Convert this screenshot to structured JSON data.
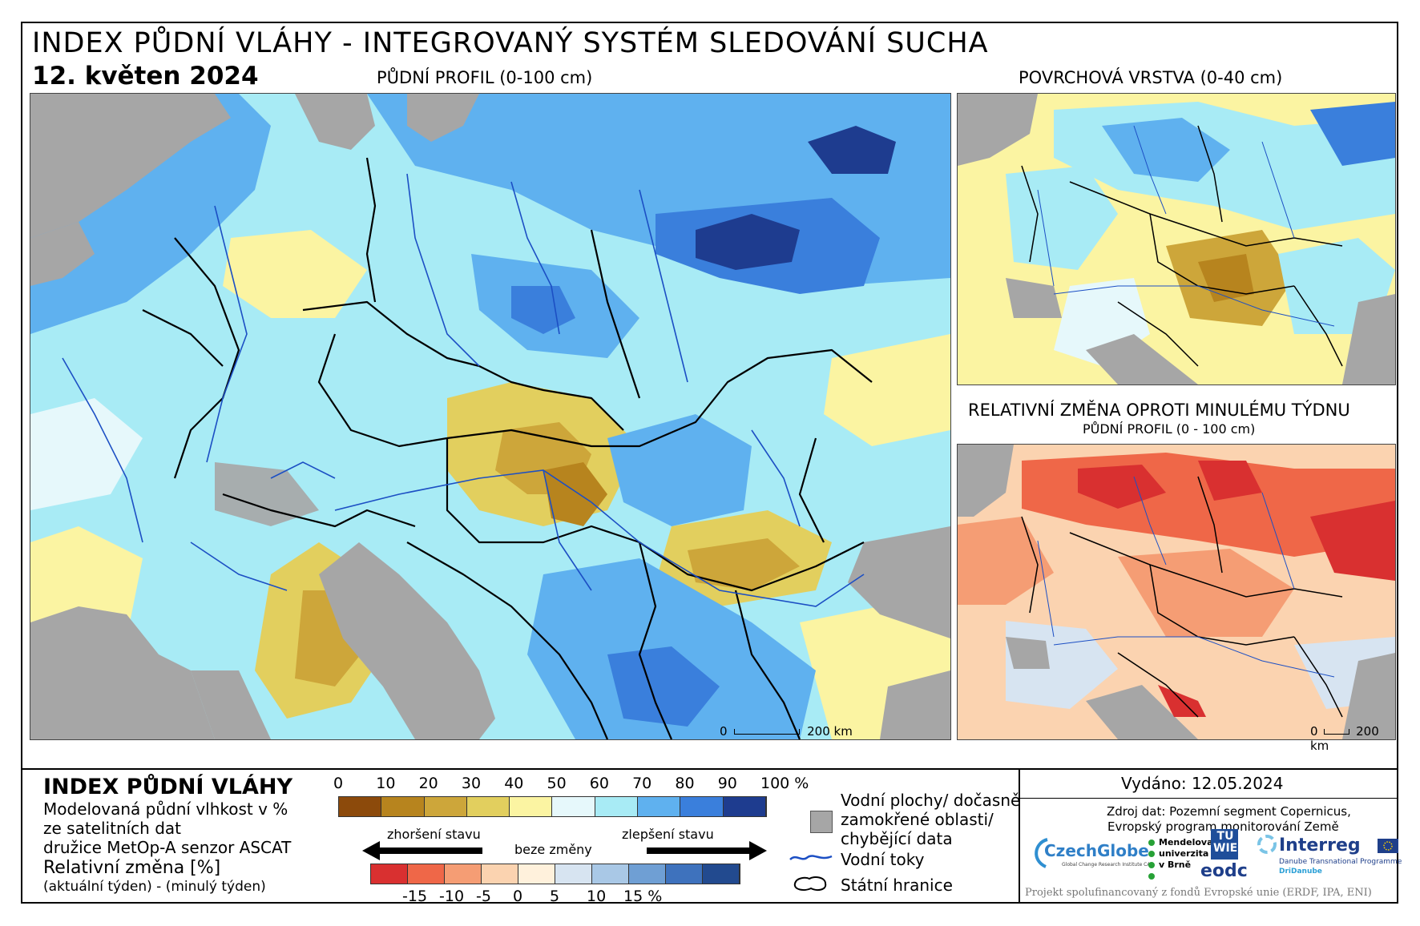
{
  "header": {
    "title": "INDEX PŮDNÍ VLÁHY - INTEGROVANÝ SYSTÉM SLEDOVÁNÍ SUCHA",
    "date": "12. květen 2024",
    "main_map_caption": "PŮDNÍ PROFIL (0-100 cm)",
    "surface_map_caption": "POVRCHOVÁ VRSTVA (0-40 cm)",
    "change_map_caption": "RELATIVNÍ ZMĚNA OPROTI MINULÉMU TÝDNU",
    "change_map_subcaption": "PŮDNÍ PROFIL (0 - 100 cm)"
  },
  "scale_bars": {
    "main": {
      "zero": "0",
      "label": "200 km"
    },
    "change": {
      "zero": "0",
      "label": "200 km"
    }
  },
  "legend": {
    "title": "INDEX PŮDNÍ VLÁHY",
    "desc_lines": [
      "Modelovaná půdní vlhkost v %",
      "ze satelitních dat",
      "družice MetOp-A senzor ASCAT"
    ],
    "change_title": "Relativní změna [%]",
    "change_desc": "(aktuální týden) - (minulý týden)",
    "index_ticks": [
      "0",
      "10",
      "20",
      "30",
      "40",
      "50",
      "60",
      "70",
      "80",
      "90",
      "100 %"
    ],
    "index_colors": [
      "#8c4a0b",
      "#b7841e",
      "#cda63a",
      "#e2cf5e",
      "#fbf4a2",
      "#e6f8fb",
      "#a8ebf5",
      "#5fb1ef",
      "#3a7fdc",
      "#1e3c8f"
    ],
    "change_colors": [
      "#d93030",
      "#ef6748",
      "#f59d74",
      "#fbd3b0",
      "#fff1dc",
      "#d7e4f1",
      "#a9c8e6",
      "#6f9fd4",
      "#3e72bd",
      "#224a8f"
    ],
    "change_ticks": [
      "-15",
      "-10",
      "-5",
      "0",
      "5",
      "10",
      "15 %"
    ],
    "worse_label": "zhoršení stavu",
    "nochange_label": "beze změny",
    "better_label": "zlepšení stavu",
    "water_label_lines": [
      "Vodní plochy/ dočasně",
      "zamokřené oblasti/",
      "chybějící data"
    ],
    "rivers_label": "Vodní toky",
    "borders_label": "Státní hranice"
  },
  "footer": {
    "issued": "Vydáno: 12.05.2024",
    "source_lines": [
      "Zdroj dat: Pozemní segment Copernicus,",
      "Evropský program monitorování Země"
    ],
    "logos": {
      "czechglobe": "CzechGlobe",
      "czechglobe_sub": "Global Change Research Institute CAS",
      "mendel_lines": [
        "Mendelova",
        "univerzita",
        "v Brně"
      ],
      "tu_wien": "TU WIEN",
      "eodc": "eodc",
      "interreg": "Interreg",
      "interreg_sub1": "Danube Transnational Programme",
      "interreg_sub2": "DriDanube"
    },
    "project": "Projekt spolufinancovaný z fondů Evropské unie (ERDF, IPA, ENI)"
  },
  "colors": {
    "sea_gray": "#a6a6a6",
    "land_missing": "#a6a6a6",
    "river_blue": "#1c4fc4",
    "border_black": "#000000"
  }
}
